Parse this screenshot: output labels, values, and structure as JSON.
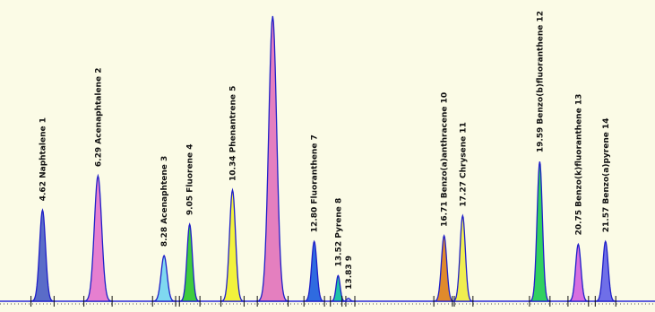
{
  "chart_data": {
    "type": "line",
    "title": "",
    "xlabel": "",
    "ylabel": "",
    "xlim": [
      2.8,
      23.6
    ],
    "ylim": [
      0,
      1.0
    ],
    "grid": false,
    "baseline_color": "#2b2bd9",
    "peaks": [
      {
        "rt": 4.62,
        "height": 0.32,
        "width": 0.09,
        "color": "#5a6cc8",
        "label": "4.62 Naphtalene  1"
      },
      {
        "rt": 6.29,
        "height": 0.44,
        "width": 0.11,
        "color": "#e67fd0",
        "label": "6.29 Acenaphtalene  2"
      },
      {
        "rt": 8.28,
        "height": 0.16,
        "width": 0.09,
        "color": "#7fd8f0",
        "label": "8.28 Acenaphtene  3"
      },
      {
        "rt": 9.05,
        "height": 0.27,
        "width": 0.08,
        "color": "#3ecc3e",
        "label": "9.05 Fluorene  4"
      },
      {
        "rt": 10.34,
        "height": 0.39,
        "width": 0.09,
        "color": "#f2f23c",
        "label": "10.34 Phenantrene  5"
      },
      {
        "rt": 11.55,
        "height": 1.0,
        "width": 0.12,
        "color": "#e47fbf",
        "label": ""
      },
      {
        "rt": 12.8,
        "height": 0.21,
        "width": 0.08,
        "color": "#2f6be0",
        "label": "12.80 Fluoranthene  7"
      },
      {
        "rt": 13.52,
        "height": 0.09,
        "width": 0.06,
        "color": "#1fc4a8",
        "label": "13.52 Pyrene  8"
      },
      {
        "rt": 13.83,
        "height": 0.01,
        "width": 0.05,
        "color": "#cfcfe8",
        "label": "13.83  9"
      },
      {
        "rt": 16.71,
        "height": 0.23,
        "width": 0.08,
        "color": "#e08a2c",
        "label": "16.71 Benzo(a)anthracene  10"
      },
      {
        "rt": 17.27,
        "height": 0.3,
        "width": 0.08,
        "color": "#f0ee50",
        "label": "17.27 Chrysene  11"
      },
      {
        "rt": 19.59,
        "height": 0.49,
        "width": 0.08,
        "color": "#30d060",
        "label": "19.59 Benzo(b)fluoranthene  12"
      },
      {
        "rt": 20.75,
        "height": 0.2,
        "width": 0.08,
        "color": "#d76fe0",
        "label": "20.75 Benzo(k)fluoranthene  13"
      },
      {
        "rt": 21.57,
        "height": 0.21,
        "width": 0.08,
        "color": "#6f6fe8",
        "label": "21.57 Benzo(a)pyrene  14"
      }
    ]
  }
}
